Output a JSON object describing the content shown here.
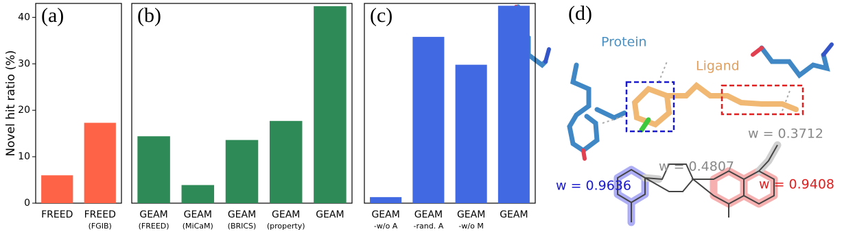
{
  "chart_data": [
    {
      "type": "bar",
      "panel_label": "(a)",
      "ylabel": "Novel hit ratio (%)",
      "categories": [
        "FREED",
        "FREED"
      ],
      "category_notes": [
        null,
        "(FGIB)"
      ],
      "values": [
        6.0,
        17.3
      ],
      "color": "#ff6347",
      "ylim": [
        0,
        43
      ],
      "yticks": [
        0,
        10,
        20,
        30,
        40
      ]
    },
    {
      "type": "bar",
      "panel_label": "(b)",
      "categories": [
        "GEAM",
        "GEAM",
        "GEAM",
        "GEAM",
        "GEAM"
      ],
      "category_notes": [
        "(FREED)",
        "(MiCaM)",
        "(BRICS)",
        "(property)",
        null
      ],
      "values": [
        14.4,
        3.9,
        13.6,
        17.7,
        42.4
      ],
      "color": "#2e8b57",
      "ylim": [
        0,
        43
      ]
    },
    {
      "type": "bar",
      "panel_label": "(c)",
      "categories": [
        "GEAM",
        "GEAM",
        "GEAM",
        "GEAM"
      ],
      "category_notes": [
        "-w/o A",
        "-rand. A",
        "-w/o M",
        null
      ],
      "values": [
        1.3,
        35.8,
        29.8,
        42.5
      ],
      "color": "#4169e1",
      "ylim": [
        0,
        43
      ]
    }
  ],
  "panel_d": {
    "panel_label": "(d)",
    "protein_label": "Protein",
    "ligand_label": "Ligand",
    "weights": [
      "w = 0.4807",
      "w = 0.3712",
      "w = 0.9636",
      "w = 0.9408"
    ]
  }
}
